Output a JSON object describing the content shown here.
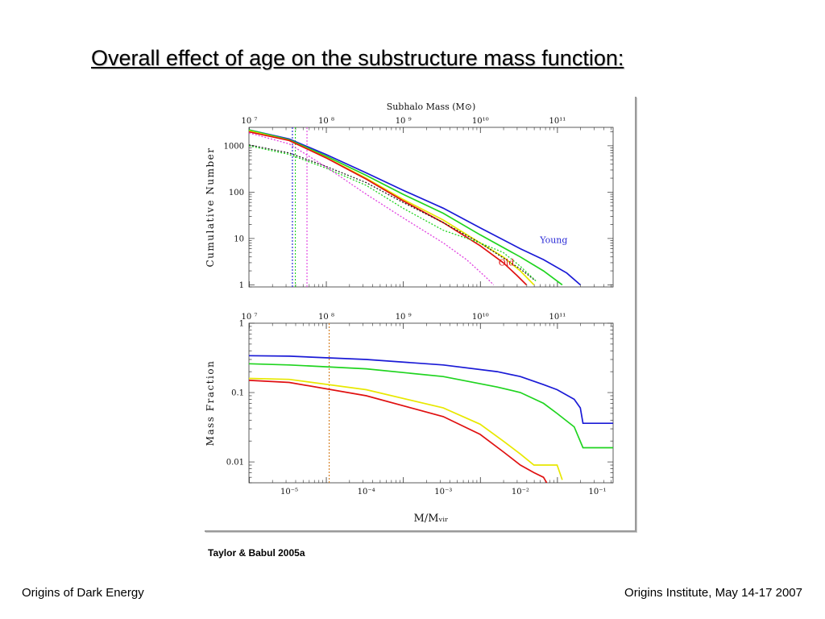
{
  "slide": {
    "title": "Overall effect of age on the substructure mass function:",
    "caption": "Taylor & Babul 2005a",
    "footer_left": "Origins of Dark Energy",
    "footer_right": "Origins Institute, May 14-17 2007"
  },
  "chart_data": [
    {
      "type": "line",
      "scale": "log-log",
      "title": "",
      "top_axis": {
        "label": "Subhalo Mass (M⊙)",
        "ticks": [
          [
            "10 ⁷",
            10000000
          ],
          [
            "10 ⁸",
            100000000
          ],
          [
            "10 ⁹",
            1000000000
          ],
          [
            "10¹⁰",
            10000000000
          ],
          [
            "10¹¹",
            100000000000
          ]
        ]
      },
      "ylabel": "Cumulative Number",
      "ylim": [
        0.9,
        2500
      ],
      "xlim": [
        3e-06,
        0.16
      ],
      "yticks": [
        [
          "1000",
          1000
        ],
        [
          "100",
          100
        ],
        [
          "10",
          10
        ],
        [
          "1",
          1
        ]
      ],
      "annotations": [
        {
          "text": "Young",
          "x": 0.018,
          "y": 8,
          "color": "#2929d6"
        },
        {
          "text": "Old",
          "x": 0.0052,
          "y": 2.6,
          "color": "#e02020"
        }
      ],
      "series": [
        {
          "color": "#1a1ad6",
          "style": "solid",
          "points": [
            [
              3e-06,
              2200
            ],
            [
              1e-05,
              1400
            ],
            [
              3e-05,
              650
            ],
            [
              0.0001,
              260
            ],
            [
              0.0003,
              110
            ],
            [
              0.001,
              45
            ],
            [
              0.003,
              17
            ],
            [
              0.01,
              6
            ],
            [
              0.02,
              3.5
            ],
            [
              0.04,
              1.8
            ],
            [
              0.06,
              1
            ]
          ]
        },
        {
          "color": "#1fd41f",
          "style": "solid",
          "points": [
            [
              3e-06,
              2200
            ],
            [
              1e-05,
              1350
            ],
            [
              3e-05,
              600
            ],
            [
              0.0001,
              230
            ],
            [
              0.0003,
              90
            ],
            [
              0.001,
              35
            ],
            [
              0.003,
              12
            ],
            [
              0.01,
              4
            ],
            [
              0.02,
              2
            ],
            [
              0.035,
              1
            ]
          ]
        },
        {
          "color": "#e8e800",
          "style": "solid",
          "points": [
            [
              3e-06,
              2100
            ],
            [
              1e-05,
              1300
            ],
            [
              3e-05,
              560
            ],
            [
              0.0001,
              200
            ],
            [
              0.0003,
              70
            ],
            [
              0.001,
              25
            ],
            [
              0.003,
              8
            ],
            [
              0.006,
              4
            ],
            [
              0.01,
              2
            ],
            [
              0.015,
              1
            ]
          ]
        },
        {
          "color": "#e01010",
          "style": "solid",
          "points": [
            [
              3e-06,
              2000
            ],
            [
              1e-05,
              1300
            ],
            [
              3e-05,
              550
            ],
            [
              0.0001,
              190
            ],
            [
              0.0003,
              65
            ],
            [
              0.001,
              22
            ],
            [
              0.003,
              7
            ],
            [
              0.006,
              3
            ],
            [
              0.009,
              1.6
            ],
            [
              0.012,
              1
            ]
          ]
        },
        {
          "color": "#222222",
          "style": "dotted",
          "points": [
            [
              3e-06,
              1050
            ],
            [
              1e-05,
              700
            ],
            [
              3e-05,
              360
            ],
            [
              0.0001,
              160
            ],
            [
              0.0003,
              60
            ],
            [
              0.001,
              22
            ],
            [
              0.003,
              8
            ],
            [
              0.01,
              2.2
            ],
            [
              0.015,
              1.3
            ]
          ]
        },
        {
          "color": "#1fd41f",
          "style": "dotted",
          "points": [
            [
              3e-06,
              1000
            ],
            [
              1e-05,
              650
            ],
            [
              3e-05,
              330
            ],
            [
              0.0001,
              140
            ],
            [
              0.0003,
              45
            ],
            [
              0.001,
              15
            ],
            [
              0.003,
              8
            ],
            [
              0.006,
              5
            ],
            [
              0.01,
              2.5
            ],
            [
              0.016,
              1.2
            ]
          ]
        },
        {
          "color": "#e040e0",
          "style": "dotted",
          "points": [
            [
              3e-06,
              1900
            ],
            [
              1e-05,
              1100
            ],
            [
              3e-05,
              350
            ],
            [
              0.0001,
              90
            ],
            [
              0.0003,
              28
            ],
            [
              0.001,
              8
            ],
            [
              0.002,
              3.5
            ],
            [
              0.0035,
              1.5
            ],
            [
              0.0045,
              1
            ]
          ]
        }
      ],
      "vlines": [
        {
          "x": 1.1e-05,
          "color": "#1a1ad6",
          "style": "dotted"
        },
        {
          "x": 1.2e-05,
          "color": "#1fd41f",
          "style": "dotted"
        },
        {
          "x": 1.7e-05,
          "color": "#e040e0",
          "style": "dotted"
        }
      ]
    },
    {
      "type": "line",
      "scale": "log-log",
      "title": "",
      "top_axis": {
        "label": "",
        "ticks": [
          [
            "10 ⁷",
            10000000
          ],
          [
            "10 ⁸",
            100000000
          ],
          [
            "10 ⁹",
            1000000000
          ],
          [
            "10¹⁰",
            10000000000
          ],
          [
            "10¹¹",
            100000000000
          ]
        ]
      },
      "xlabel": "M/Mᵥᵢᵣ",
      "ylabel": "Mass Fraction",
      "xlim": [
        3e-06,
        0.16
      ],
      "ylim": [
        0.005,
        1
      ],
      "xticks": [
        [
          "10⁻⁵",
          1e-05
        ],
        [
          "10⁻⁴",
          0.0001
        ],
        [
          "10⁻³",
          0.001
        ],
        [
          "10⁻²",
          0.01
        ],
        [
          "10⁻¹",
          0.1
        ]
      ],
      "yticks": [
        [
          "1",
          1
        ],
        [
          "0.1",
          0.1
        ],
        [
          "0.01",
          0.01
        ]
      ],
      "series": [
        {
          "color": "#1a1ad6",
          "style": "solid",
          "points": [
            [
              3e-06,
              0.34
            ],
            [
              1e-05,
              0.335
            ],
            [
              0.0001,
              0.3
            ],
            [
              0.001,
              0.25
            ],
            [
              0.005,
              0.2
            ],
            [
              0.01,
              0.17
            ],
            [
              0.02,
              0.13
            ],
            [
              0.03,
              0.11
            ],
            [
              0.05,
              0.08
            ],
            [
              0.06,
              0.06
            ],
            [
              0.065,
              0.036
            ],
            [
              0.16,
              0.036
            ]
          ]
        },
        {
          "color": "#1fd41f",
          "style": "solid",
          "points": [
            [
              3e-06,
              0.26
            ],
            [
              1e-05,
              0.25
            ],
            [
              0.0001,
              0.22
            ],
            [
              0.001,
              0.17
            ],
            [
              0.005,
              0.12
            ],
            [
              0.01,
              0.1
            ],
            [
              0.02,
              0.07
            ],
            [
              0.03,
              0.05
            ],
            [
              0.05,
              0.032
            ],
            [
              0.065,
              0.016
            ],
            [
              0.16,
              0.016
            ]
          ]
        },
        {
          "color": "#e8e800",
          "style": "solid",
          "points": [
            [
              3e-06,
              0.16
            ],
            [
              1e-05,
              0.155
            ],
            [
              0.0001,
              0.11
            ],
            [
              0.001,
              0.06
            ],
            [
              0.003,
              0.035
            ],
            [
              0.006,
              0.02
            ],
            [
              0.01,
              0.013
            ],
            [
              0.015,
              0.009
            ],
            [
              0.03,
              0.009
            ],
            [
              0.035,
              0.0055
            ]
          ]
        },
        {
          "color": "#e01010",
          "style": "solid",
          "points": [
            [
              3e-06,
              0.15
            ],
            [
              1e-05,
              0.14
            ],
            [
              0.0001,
              0.09
            ],
            [
              0.001,
              0.045
            ],
            [
              0.003,
              0.025
            ],
            [
              0.006,
              0.014
            ],
            [
              0.01,
              0.009
            ],
            [
              0.015,
              0.007
            ],
            [
              0.02,
              0.006
            ],
            [
              0.022,
              0.005
            ]
          ]
        }
      ],
      "vlines": [
        {
          "x": 3.3e-05,
          "color": "#d47a1a",
          "style": "dotted"
        }
      ]
    }
  ]
}
